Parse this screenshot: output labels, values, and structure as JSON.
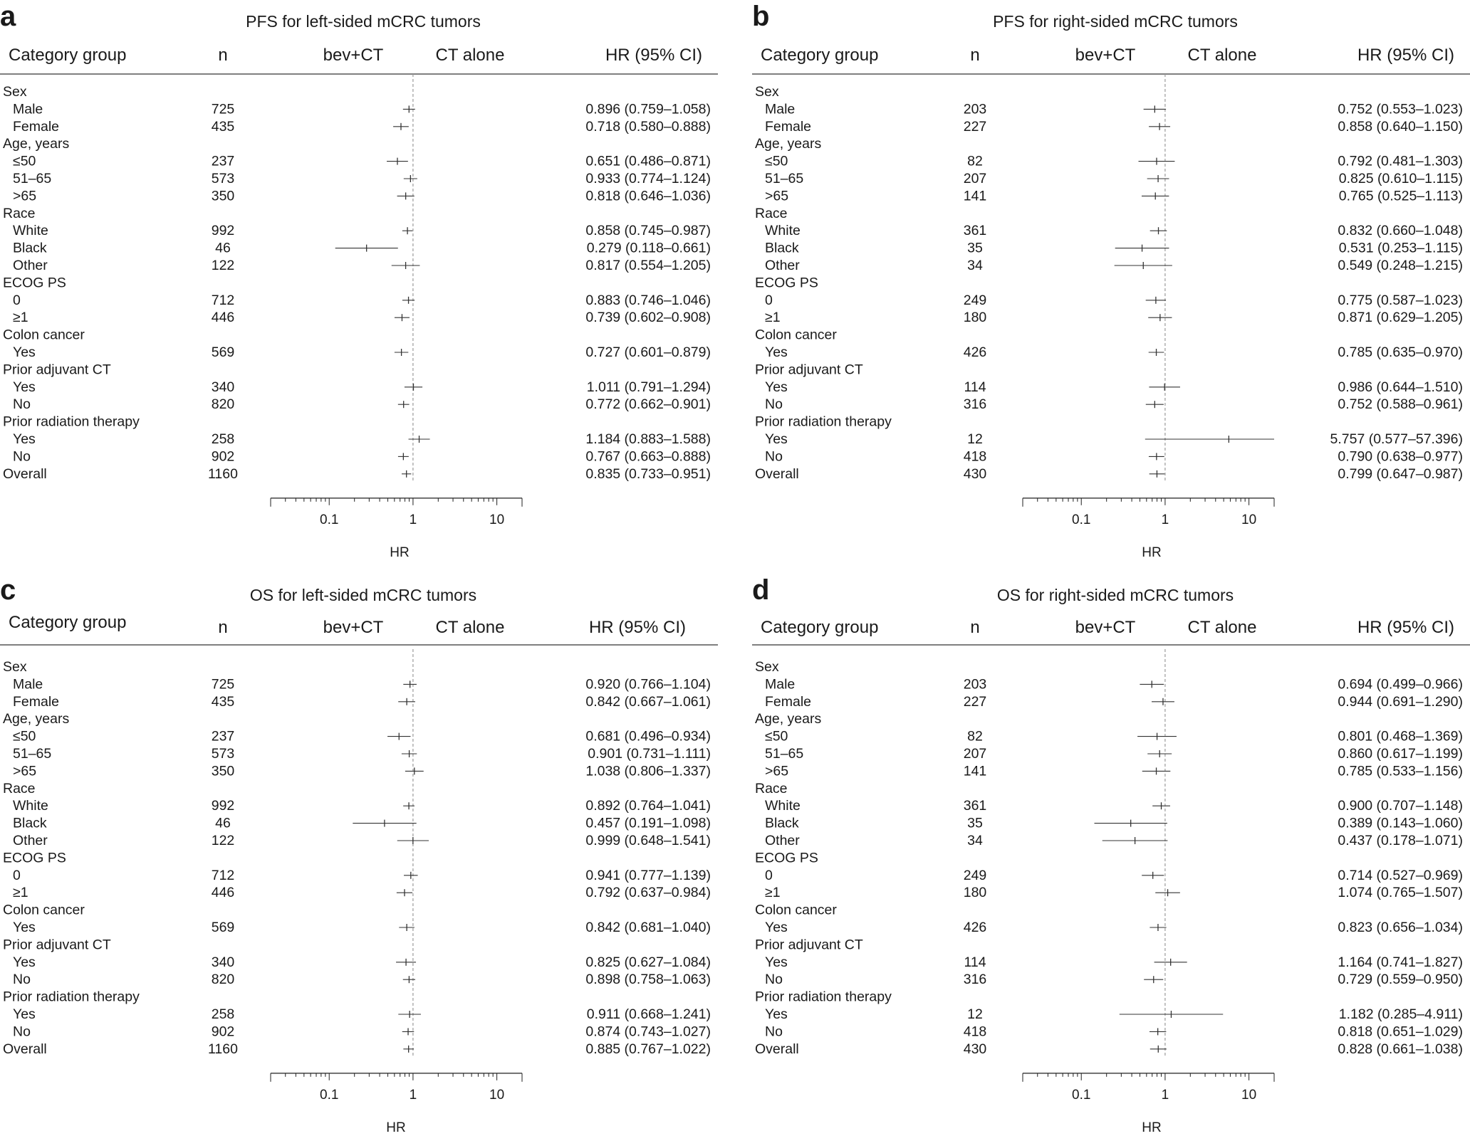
{
  "headers": {
    "category": "Category group",
    "n": "n",
    "favor_left": "bev+CT",
    "favor_right": "CT alone",
    "hr_col": "HR (95% CI)",
    "xlabel": "HR",
    "ticks": [
      "0.1",
      "1",
      "10"
    ]
  },
  "colors": {
    "text": "#1a1a1a",
    "axis": "#333333",
    "reference_line": "#9a9a9a"
  },
  "chart_data": [
    {
      "letter": "a",
      "type": "forest",
      "title": "PFS for left-sided mCRC tumors",
      "x_scale": "log",
      "x_range": [
        0.02,
        20
      ],
      "reference": 1,
      "rows": [
        {
          "label": "Sex",
          "header": true
        },
        {
          "label": "Male",
          "n": "725",
          "hr": 0.896,
          "lo": 0.759,
          "hi": 1.058,
          "ci_text": "0.896 (0.759–1.058)"
        },
        {
          "label": "Female",
          "n": "435",
          "hr": 0.718,
          "lo": 0.58,
          "hi": 0.888,
          "ci_text": "0.718 (0.580–0.888)"
        },
        {
          "label": "Age, years",
          "header": true
        },
        {
          "label": "≤50",
          "n": "237",
          "hr": 0.651,
          "lo": 0.486,
          "hi": 0.871,
          "ci_text": "0.651 (0.486–0.871)"
        },
        {
          "label": "51–65",
          "n": "573",
          "hr": 0.933,
          "lo": 0.774,
          "hi": 1.124,
          "ci_text": "0.933 (0.774–1.124)"
        },
        {
          "label": ">65",
          "n": "350",
          "hr": 0.818,
          "lo": 0.646,
          "hi": 1.036,
          "ci_text": "0.818 (0.646–1.036)"
        },
        {
          "label": "Race",
          "header": true
        },
        {
          "label": "White",
          "n": "992",
          "hr": 0.858,
          "lo": 0.745,
          "hi": 0.987,
          "ci_text": "0.858 (0.745–0.987)"
        },
        {
          "label": "Black",
          "n": "46",
          "hr": 0.279,
          "lo": 0.118,
          "hi": 0.661,
          "ci_text": "0.279 (0.118–0.661)"
        },
        {
          "label": "Other",
          "n": "122",
          "hr": 0.817,
          "lo": 0.554,
          "hi": 1.205,
          "ci_text": "0.817 (0.554–1.205)"
        },
        {
          "label": "ECOG PS",
          "header": true
        },
        {
          "label": "0",
          "n": "712",
          "hr": 0.883,
          "lo": 0.746,
          "hi": 1.046,
          "ci_text": "0.883 (0.746–1.046)"
        },
        {
          "label": "≥1",
          "n": "446",
          "hr": 0.739,
          "lo": 0.602,
          "hi": 0.908,
          "ci_text": "0.739 (0.602–0.908)"
        },
        {
          "label": "Colon cancer",
          "header": true
        },
        {
          "label": "Yes",
          "n": "569",
          "hr": 0.727,
          "lo": 0.601,
          "hi": 0.879,
          "ci_text": "0.727 (0.601–0.879)"
        },
        {
          "label": "Prior adjuvant CT",
          "header": true
        },
        {
          "label": "Yes",
          "n": "340",
          "hr": 1.011,
          "lo": 0.791,
          "hi": 1.294,
          "ci_text": "1.011 (0.791–1.294)"
        },
        {
          "label": "No",
          "n": "820",
          "hr": 0.772,
          "lo": 0.662,
          "hi": 0.901,
          "ci_text": "0.772 (0.662–0.901)"
        },
        {
          "label": "Prior radiation therapy",
          "header": true
        },
        {
          "label": "Yes",
          "n": "258",
          "hr": 1.184,
          "lo": 0.883,
          "hi": 1.588,
          "ci_text": "1.184 (0.883–1.588)"
        },
        {
          "label": "No",
          "n": "902",
          "hr": 0.767,
          "lo": 0.663,
          "hi": 0.888,
          "ci_text": "0.767 (0.663–0.888)"
        },
        {
          "label": "Overall",
          "overall": true,
          "n": "1160",
          "hr": 0.835,
          "lo": 0.733,
          "hi": 0.951,
          "ci_text": "0.835 (0.733–0.951)"
        }
      ]
    },
    {
      "letter": "b",
      "type": "forest",
      "title": "PFS for right-sided mCRC tumors",
      "x_scale": "log",
      "x_range": [
        0.02,
        20
      ],
      "reference": 1,
      "rows": [
        {
          "label": "Sex",
          "header": true
        },
        {
          "label": "Male",
          "n": "203",
          "hr": 0.752,
          "lo": 0.553,
          "hi": 1.023,
          "ci_text": "0.752 (0.553–1.023)"
        },
        {
          "label": "Female",
          "n": "227",
          "hr": 0.858,
          "lo": 0.64,
          "hi": 1.15,
          "ci_text": "0.858 (0.640–1.150)"
        },
        {
          "label": "Age, years",
          "header": true
        },
        {
          "label": "≤50",
          "n": "82",
          "hr": 0.792,
          "lo": 0.481,
          "hi": 1.303,
          "ci_text": "0.792 (0.481–1.303)"
        },
        {
          "label": "51–65",
          "n": "207",
          "hr": 0.825,
          "lo": 0.61,
          "hi": 1.115,
          "ci_text": "0.825 (0.610–1.115)"
        },
        {
          "label": ">65",
          "n": "141",
          "hr": 0.765,
          "lo": 0.525,
          "hi": 1.113,
          "ci_text": "0.765 (0.525–1.113)"
        },
        {
          "label": "Race",
          "header": true
        },
        {
          "label": "White",
          "n": "361",
          "hr": 0.832,
          "lo": 0.66,
          "hi": 1.048,
          "ci_text": "0.832 (0.660–1.048)"
        },
        {
          "label": "Black",
          "n": "35",
          "hr": 0.531,
          "lo": 0.253,
          "hi": 1.115,
          "ci_text": "0.531 (0.253–1.115)"
        },
        {
          "label": "Other",
          "n": "34",
          "hr": 0.549,
          "lo": 0.248,
          "hi": 1.215,
          "ci_text": "0.549 (0.248–1.215)"
        },
        {
          "label": "ECOG PS",
          "header": true
        },
        {
          "label": "0",
          "n": "249",
          "hr": 0.775,
          "lo": 0.587,
          "hi": 1.023,
          "ci_text": "0.775 (0.587–1.023)"
        },
        {
          "label": "≥1",
          "n": "180",
          "hr": 0.871,
          "lo": 0.629,
          "hi": 1.205,
          "ci_text": "0.871 (0.629–1.205)"
        },
        {
          "label": "Colon cancer",
          "header": true
        },
        {
          "label": "Yes",
          "n": "426",
          "hr": 0.785,
          "lo": 0.635,
          "hi": 0.97,
          "ci_text": "0.785 (0.635–0.970)"
        },
        {
          "label": "Prior adjuvant CT",
          "header": true
        },
        {
          "label": "Yes",
          "n": "114",
          "hr": 0.986,
          "lo": 0.644,
          "hi": 1.51,
          "ci_text": "0.986 (0.644–1.510)"
        },
        {
          "label": "No",
          "n": "316",
          "hr": 0.752,
          "lo": 0.588,
          "hi": 0.961,
          "ci_text": "0.752 (0.588–0.961)"
        },
        {
          "label": "Prior radiation therapy",
          "header": true
        },
        {
          "label": "Yes",
          "n": "12",
          "hr": 5.757,
          "lo": 0.577,
          "hi": 57.396,
          "ci_text": "5.757 (0.577–57.396)"
        },
        {
          "label": "No",
          "n": "418",
          "hr": 0.79,
          "lo": 0.638,
          "hi": 0.977,
          "ci_text": "0.790 (0.638–0.977)"
        },
        {
          "label": "Overall",
          "overall": true,
          "n": "430",
          "hr": 0.799,
          "lo": 0.647,
          "hi": 0.987,
          "ci_text": "0.799 (0.647–0.987)"
        }
      ]
    },
    {
      "letter": "c",
      "type": "forest",
      "title": "OS for left-sided mCRC tumors",
      "x_scale": "log",
      "x_range": [
        0.02,
        20
      ],
      "reference": 1,
      "rows": [
        {
          "label": "Sex",
          "header": true
        },
        {
          "label": "Male",
          "n": "725",
          "hr": 0.92,
          "lo": 0.766,
          "hi": 1.104,
          "ci_text": "0.920 (0.766–1.104)"
        },
        {
          "label": "Female",
          "n": "435",
          "hr": 0.842,
          "lo": 0.667,
          "hi": 1.061,
          "ci_text": "0.842 (0.667–1.061)"
        },
        {
          "label": "Age, years",
          "header": true
        },
        {
          "label": "≤50",
          "n": "237",
          "hr": 0.681,
          "lo": 0.496,
          "hi": 0.934,
          "ci_text": "0.681 (0.496–0.934)"
        },
        {
          "label": "51–65",
          "n": "573",
          "hr": 0.901,
          "lo": 0.731,
          "hi": 1.111,
          "ci_text": "0.901 (0.731–1.111)"
        },
        {
          "label": ">65",
          "n": "350",
          "hr": 1.038,
          "lo": 0.806,
          "hi": 1.337,
          "ci_text": "1.038 (0.806–1.337)"
        },
        {
          "label": "Race",
          "header": true
        },
        {
          "label": "White",
          "n": "992",
          "hr": 0.892,
          "lo": 0.764,
          "hi": 1.041,
          "ci_text": "0.892 (0.764–1.041)"
        },
        {
          "label": "Black",
          "n": "46",
          "hr": 0.457,
          "lo": 0.191,
          "hi": 1.098,
          "ci_text": "0.457 (0.191–1.098)"
        },
        {
          "label": "Other",
          "n": "122",
          "hr": 0.999,
          "lo": 0.648,
          "hi": 1.541,
          "ci_text": "0.999 (0.648–1.541)"
        },
        {
          "label": "ECOG PS",
          "header": true
        },
        {
          "label": "0",
          "n": "712",
          "hr": 0.941,
          "lo": 0.777,
          "hi": 1.139,
          "ci_text": "0.941 (0.777–1.139)"
        },
        {
          "label": "≥1",
          "n": "446",
          "hr": 0.792,
          "lo": 0.637,
          "hi": 0.984,
          "ci_text": "0.792 (0.637–0.984)"
        },
        {
          "label": "Colon cancer",
          "header": true
        },
        {
          "label": "Yes",
          "n": "569",
          "hr": 0.842,
          "lo": 0.681,
          "hi": 1.04,
          "ci_text": "0.842 (0.681–1.040)"
        },
        {
          "label": "Prior adjuvant CT",
          "header": true
        },
        {
          "label": "Yes",
          "n": "340",
          "hr": 0.825,
          "lo": 0.627,
          "hi": 1.084,
          "ci_text": "0.825 (0.627–1.084)"
        },
        {
          "label": "No",
          "n": "820",
          "hr": 0.898,
          "lo": 0.758,
          "hi": 1.063,
          "ci_text": "0.898 (0.758–1.063)"
        },
        {
          "label": "Prior radiation therapy",
          "header": true
        },
        {
          "label": "Yes",
          "n": "258",
          "hr": 0.911,
          "lo": 0.668,
          "hi": 1.241,
          "ci_text": "0.911 (0.668–1.241)"
        },
        {
          "label": "No",
          "n": "902",
          "hr": 0.874,
          "lo": 0.743,
          "hi": 1.027,
          "ci_text": "0.874 (0.743–1.027)"
        },
        {
          "label": "Overall",
          "overall": true,
          "n": "1160",
          "hr": 0.885,
          "lo": 0.767,
          "hi": 1.022,
          "ci_text": "0.885 (0.767–1.022)"
        }
      ]
    },
    {
      "letter": "d",
      "type": "forest",
      "title": "OS for right-sided mCRC tumors",
      "x_scale": "log",
      "x_range": [
        0.02,
        20
      ],
      "reference": 1,
      "rows": [
        {
          "label": "Sex",
          "header": true
        },
        {
          "label": "Male",
          "n": "203",
          "hr": 0.694,
          "lo": 0.499,
          "hi": 0.966,
          "ci_text": "0.694 (0.499–0.966)"
        },
        {
          "label": "Female",
          "n": "227",
          "hr": 0.944,
          "lo": 0.691,
          "hi": 1.29,
          "ci_text": "0.944 (0.691–1.290)"
        },
        {
          "label": "Age, years",
          "header": true
        },
        {
          "label": "≤50",
          "n": "82",
          "hr": 0.801,
          "lo": 0.468,
          "hi": 1.369,
          "ci_text": "0.801 (0.468–1.369)"
        },
        {
          "label": "51–65",
          "n": "207",
          "hr": 0.86,
          "lo": 0.617,
          "hi": 1.199,
          "ci_text": "0.860 (0.617–1.199)"
        },
        {
          "label": ">65",
          "n": "141",
          "hr": 0.785,
          "lo": 0.533,
          "hi": 1.156,
          "ci_text": "0.785 (0.533–1.156)"
        },
        {
          "label": "Race",
          "header": true
        },
        {
          "label": "White",
          "n": "361",
          "hr": 0.9,
          "lo": 0.707,
          "hi": 1.148,
          "ci_text": "0.900 (0.707–1.148)"
        },
        {
          "label": "Black",
          "n": "35",
          "hr": 0.389,
          "lo": 0.143,
          "hi": 1.06,
          "ci_text": "0.389 (0.143–1.060)"
        },
        {
          "label": "Other",
          "n": "34",
          "hr": 0.437,
          "lo": 0.178,
          "hi": 1.071,
          "ci_text": "0.437 (0.178–1.071)"
        },
        {
          "label": "ECOG PS",
          "header": true
        },
        {
          "label": "0",
          "n": "249",
          "hr": 0.714,
          "lo": 0.527,
          "hi": 0.969,
          "ci_text": "0.714 (0.527–0.969)"
        },
        {
          "label": "≥1",
          "n": "180",
          "hr": 1.074,
          "lo": 0.765,
          "hi": 1.507,
          "ci_text": "1.074 (0.765–1.507)"
        },
        {
          "label": "Colon cancer",
          "header": true
        },
        {
          "label": "Yes",
          "n": "426",
          "hr": 0.823,
          "lo": 0.656,
          "hi": 1.034,
          "ci_text": "0.823 (0.656–1.034)"
        },
        {
          "label": "Prior adjuvant CT",
          "header": true
        },
        {
          "label": "Yes",
          "n": "114",
          "hr": 1.164,
          "lo": 0.741,
          "hi": 1.827,
          "ci_text": "1.164 (0.741–1.827)"
        },
        {
          "label": "No",
          "n": "316",
          "hr": 0.729,
          "lo": 0.559,
          "hi": 0.95,
          "ci_text": "0.729 (0.559–0.950)"
        },
        {
          "label": "Prior radiation therapy",
          "header": true
        },
        {
          "label": "Yes",
          "n": "12",
          "hr": 1.182,
          "lo": 0.285,
          "hi": 4.911,
          "ci_text": "1.182 (0.285–4.911)"
        },
        {
          "label": "No",
          "n": "418",
          "hr": 0.818,
          "lo": 0.651,
          "hi": 1.029,
          "ci_text": "0.818 (0.651–1.029)"
        },
        {
          "label": "Overall",
          "overall": true,
          "n": "430",
          "hr": 0.828,
          "lo": 0.661,
          "hi": 1.038,
          "ci_text": "0.828 (0.661–1.038)"
        }
      ]
    }
  ]
}
